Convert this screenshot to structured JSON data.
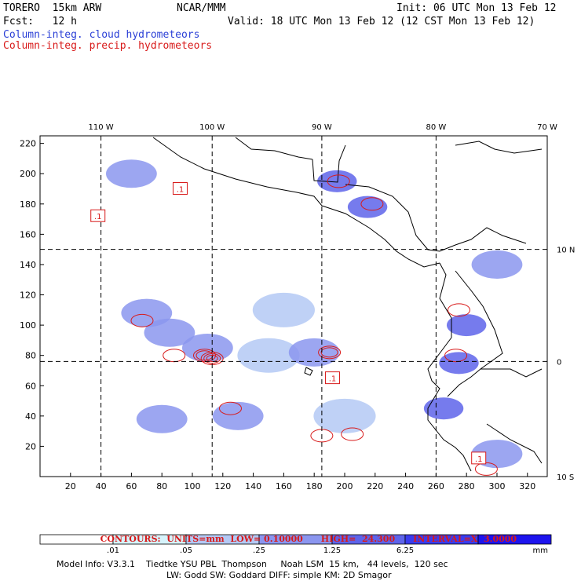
{
  "header": {
    "model": "TORERO  15km ARW",
    "org": "NCAR/MMM",
    "init": "Init: 06 UTC Mon 13 Feb 12",
    "fcst": "Fcst:   12 h",
    "valid": "Valid: 18 UTC Mon 13 Feb 12 (12 CST Mon 13 Feb 12)",
    "cloud_label": "Column-integ. cloud hydrometeors",
    "precip_label": "Column-integ. precip. hydrometeors"
  },
  "colors": {
    "cloud_series": "#2a3fd6",
    "precip_series": "#d81a1a",
    "coast": "#000000",
    "grid": "#000000"
  },
  "chart_data": {
    "type": "heatmap",
    "title": "",
    "xlabel": "",
    "ylabel": "",
    "xlim": [
      0,
      333
    ],
    "ylim": [
      0,
      225
    ],
    "x_ticks": [
      20,
      40,
      60,
      80,
      100,
      120,
      140,
      160,
      180,
      200,
      220,
      240,
      260,
      280,
      300,
      320
    ],
    "y_ticks": [
      20,
      40,
      60,
      80,
      100,
      120,
      140,
      160,
      180,
      200,
      220
    ],
    "top_lon_labels": [
      {
        "label": "110 W",
        "x": 40
      },
      {
        "label": "100 W",
        "x": 113
      },
      {
        "label": "90 W",
        "x": 185
      },
      {
        "label": "80 W",
        "x": 260
      },
      {
        "label": "70 W",
        "x": 333
      }
    ],
    "right_lat_labels": [
      {
        "label": "10 N",
        "y": 150
      },
      {
        "label": "0",
        "y": 76
      },
      {
        "label": "10 S",
        "y": 0
      }
    ],
    "grid_lines": {
      "x": [
        40,
        113,
        185,
        260
      ],
      "y": [
        150,
        76
      ]
    },
    "series": [
      {
        "name": "Column-integ. cloud hydrometeors",
        "field": "cloud"
      },
      {
        "name": "Column-integ. precip. hydrometeors",
        "field": "precip"
      }
    ],
    "cloud_cells": [
      {
        "x": 70,
        "y": 108,
        "value": 0.25
      },
      {
        "x": 85,
        "y": 95,
        "value": 0.25
      },
      {
        "x": 110,
        "y": 85,
        "value": 0.25
      },
      {
        "x": 150,
        "y": 80,
        "value": 0.05
      },
      {
        "x": 180,
        "y": 82,
        "value": 0.25
      },
      {
        "x": 200,
        "y": 40,
        "value": 0.05
      },
      {
        "x": 130,
        "y": 40,
        "value": 0.25
      },
      {
        "x": 80,
        "y": 38,
        "value": 0.25
      },
      {
        "x": 195,
        "y": 195,
        "value": 1.25
      },
      {
        "x": 215,
        "y": 178,
        "value": 1.25
      },
      {
        "x": 280,
        "y": 100,
        "value": 1.25
      },
      {
        "x": 275,
        "y": 75,
        "value": 1.25
      },
      {
        "x": 265,
        "y": 45,
        "value": 1.25
      },
      {
        "x": 300,
        "y": 15,
        "value": 0.25
      },
      {
        "x": 300,
        "y": 140,
        "value": 0.25
      },
      {
        "x": 60,
        "y": 200,
        "value": 0.25
      },
      {
        "x": 160,
        "y": 110,
        "value": 0.05
      }
    ],
    "precip_contours": [
      {
        "x": 88,
        "y": 80,
        "value": 3.1
      },
      {
        "x": 108,
        "y": 80,
        "value": 6.1
      },
      {
        "x": 113,
        "y": 78,
        "value": 9.1
      },
      {
        "x": 190,
        "y": 82,
        "value": 6.1
      },
      {
        "x": 125,
        "y": 45,
        "value": 3.1
      },
      {
        "x": 67,
        "y": 103,
        "value": 3.1
      },
      {
        "x": 196,
        "y": 195,
        "value": 3.1
      },
      {
        "x": 218,
        "y": 180,
        "value": 3.1
      },
      {
        "x": 275,
        "y": 110,
        "value": 3.1
      },
      {
        "x": 273,
        "y": 80,
        "value": 3.1
      },
      {
        "x": 205,
        "y": 28,
        "value": 3.1
      },
      {
        "x": 185,
        "y": 27,
        "value": 0.1
      },
      {
        "x": 293,
        "y": 5,
        "value": 0.1
      }
    ],
    "annotations": [
      {
        "text": ".1",
        "x": 38,
        "y": 172
      },
      {
        "text": ".1",
        "x": 92,
        "y": 190
      },
      {
        "text": ".1",
        "x": 192,
        "y": 65
      },
      {
        "text": ".1",
        "x": 288,
        "y": 12
      }
    ],
    "colorbar": {
      "unit": "mm",
      "ticks": [
        ".01",
        ".05",
        ".25",
        "1.25",
        "6.25"
      ],
      "colors": [
        "#ffffff",
        "#d6f3fb",
        "#b4c9f4",
        "#8b96ef",
        "#5e64ea",
        "#3a3cee",
        "#1d14ee"
      ]
    },
    "contours_info": {
      "label": "CONTOURS:",
      "units": "UNITS=mm",
      "low": "LOW= 0.10000",
      "high": "HIGH=  24.300",
      "interval": "INTERVAL=X  3.0000"
    }
  },
  "footer": {
    "line1": "Model Info: V3.3.1    Tiedtke YSU PBL  Thompson     Noah LSM  15 km,   44 levels,  120 sec",
    "line2": "LW: Godd SW: Goddard DIFF: simple KM: 2D Smagor"
  }
}
